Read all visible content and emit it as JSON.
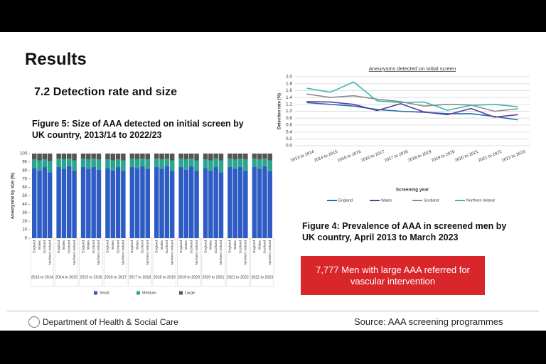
{
  "slide": {
    "title": "Results",
    "section": "7.2 Detection rate and size",
    "callout": "7,777 Men with large AAA referred for vascular intervention",
    "department": "Department of Health & Social Care",
    "source": "Source: AAA screening programmes"
  },
  "chart_data": [
    {
      "type": "stacked_bar",
      "title": "Figure 5: Size of AAA detected on initial screen by UK country, 2013/14 to 2022/23",
      "ylabel": "Aneurysms by size (%)",
      "categories": [
        "England",
        "Wales",
        "Scotland",
        "Northern Ireland",
        "England",
        "Wales",
        "Scotland",
        "Northern Ireland",
        "England",
        "Wales",
        "Scotland",
        "Northern Ireland",
        "England",
        "Wales",
        "Scotland",
        "Northern Ireland",
        "England",
        "Wales",
        "Scotland",
        "Northern Ireland",
        "England",
        "Wales",
        "Scotland",
        "Northern Ireland",
        "England",
        "Wales",
        "Scotland",
        "Northern Ireland",
        "England",
        "Wales",
        "Scotland",
        "Northern Ireland",
        "England",
        "Wales",
        "Scotland",
        "Northern Ireland",
        "England",
        "Wales",
        "Scotland",
        "Northern Ireland"
      ],
      "groups": [
        "2013 to 2014",
        "2014 to 2015",
        "2015 to 2016",
        "2016 to 2017",
        "2017 to 2018",
        "2018 to 2019",
        "2019 to 2020",
        "2020 to 2021",
        "2021 to 2022",
        "2022 to 2023"
      ],
      "series": [
        {
          "name": "Small",
          "color": "#2e5cc4",
          "values": [
            83,
            80,
            84,
            78,
            84,
            82,
            85,
            80,
            84,
            82,
            84,
            81,
            83,
            80,
            84,
            79,
            84,
            83,
            85,
            82,
            84,
            82,
            85,
            80,
            84,
            81,
            85,
            80,
            83,
            80,
            84,
            78,
            84,
            82,
            84,
            80,
            84,
            82,
            85,
            79
          ]
        },
        {
          "name": "Medium",
          "color": "#2ba58f",
          "values": [
            10,
            12,
            9,
            13,
            10,
            11,
            9,
            12,
            10,
            11,
            10,
            12,
            10,
            12,
            9,
            13,
            10,
            10,
            9,
            11,
            10,
            11,
            9,
            12,
            10,
            12,
            9,
            12,
            10,
            12,
            10,
            14,
            10,
            11,
            10,
            13,
            10,
            11,
            9,
            13
          ]
        },
        {
          "name": "Large",
          "color": "#555555",
          "values": [
            7,
            8,
            7,
            9,
            6,
            7,
            6,
            8,
            6,
            7,
            6,
            7,
            7,
            8,
            7,
            8,
            6,
            7,
            6,
            7,
            6,
            7,
            6,
            8,
            6,
            7,
            6,
            8,
            7,
            8,
            6,
            8,
            6,
            7,
            6,
            7,
            6,
            7,
            6,
            8
          ]
        }
      ],
      "ylim": [
        0,
        100
      ],
      "yticks": [
        0,
        10,
        20,
        30,
        40,
        50,
        60,
        70,
        80,
        90,
        100
      ],
      "legend": "bottom"
    },
    {
      "type": "line",
      "title": "Aneurysms detected on initial screen",
      "caption": "Figure 4: Prevalence of AAA in screened men by UK country, April 2013 to March 2023",
      "xlabel": "Screening year",
      "ylabel": "Detection rate (%)",
      "categories": [
        "2013 to 2014",
        "2014 to 2015",
        "2015 to 2016",
        "2016 to 2017",
        "2017 to 2018",
        "2018 to 2019",
        "2019 to 2020",
        "2020 to 2021",
        "2021 to 2022",
        "2022 to 2023"
      ],
      "series": [
        {
          "name": "England",
          "color": "#1f6db8",
          "values": [
            1.25,
            1.2,
            1.15,
            1.05,
            1.0,
            0.97,
            0.93,
            0.93,
            0.85,
            0.75
          ]
        },
        {
          "name": "Wales",
          "color": "#5b3c9a",
          "values": [
            1.28,
            1.27,
            1.2,
            1.02,
            1.22,
            0.98,
            0.9,
            1.08,
            0.83,
            0.9
          ]
        },
        {
          "name": "Scotland",
          "color": "#8a8a8a",
          "values": [
            1.5,
            1.4,
            1.45,
            1.35,
            1.28,
            1.15,
            1.2,
            1.18,
            1.0,
            1.07
          ]
        },
        {
          "name": "Northern Ireland",
          "color": "#3bb8b0",
          "values": [
            1.67,
            1.55,
            1.85,
            1.3,
            1.25,
            1.27,
            1.03,
            1.17,
            1.2,
            1.13
          ]
        }
      ],
      "ylim": [
        0,
        2
      ],
      "yticks": [
        {
          "value": 0,
          "label": "0.0"
        },
        0.2,
        0.4,
        0.6,
        0.8,
        {
          "value": 1,
          "label": "1.0"
        },
        1.2,
        1.4,
        1.6,
        1.8,
        {
          "value": 2,
          "label": "2.0"
        }
      ],
      "grid": true,
      "legend": "bottom"
    }
  ]
}
